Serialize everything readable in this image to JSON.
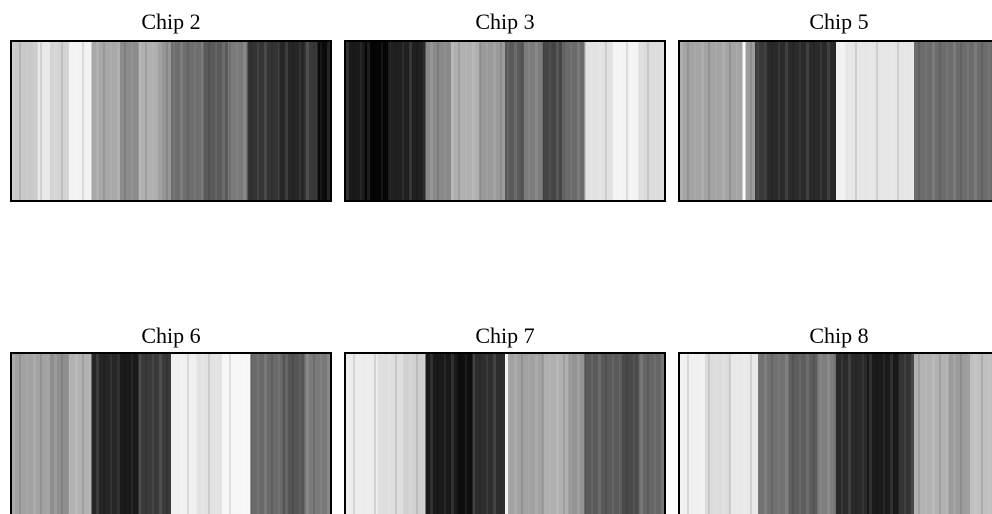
{
  "panels": [
    {
      "title": "Chip 2"
    },
    {
      "title": "Chip 3"
    },
    {
      "title": "Chip 5"
    },
    {
      "title": "Chip 6"
    },
    {
      "title": "Chip 7"
    },
    {
      "title": "Chip 8"
    }
  ]
}
